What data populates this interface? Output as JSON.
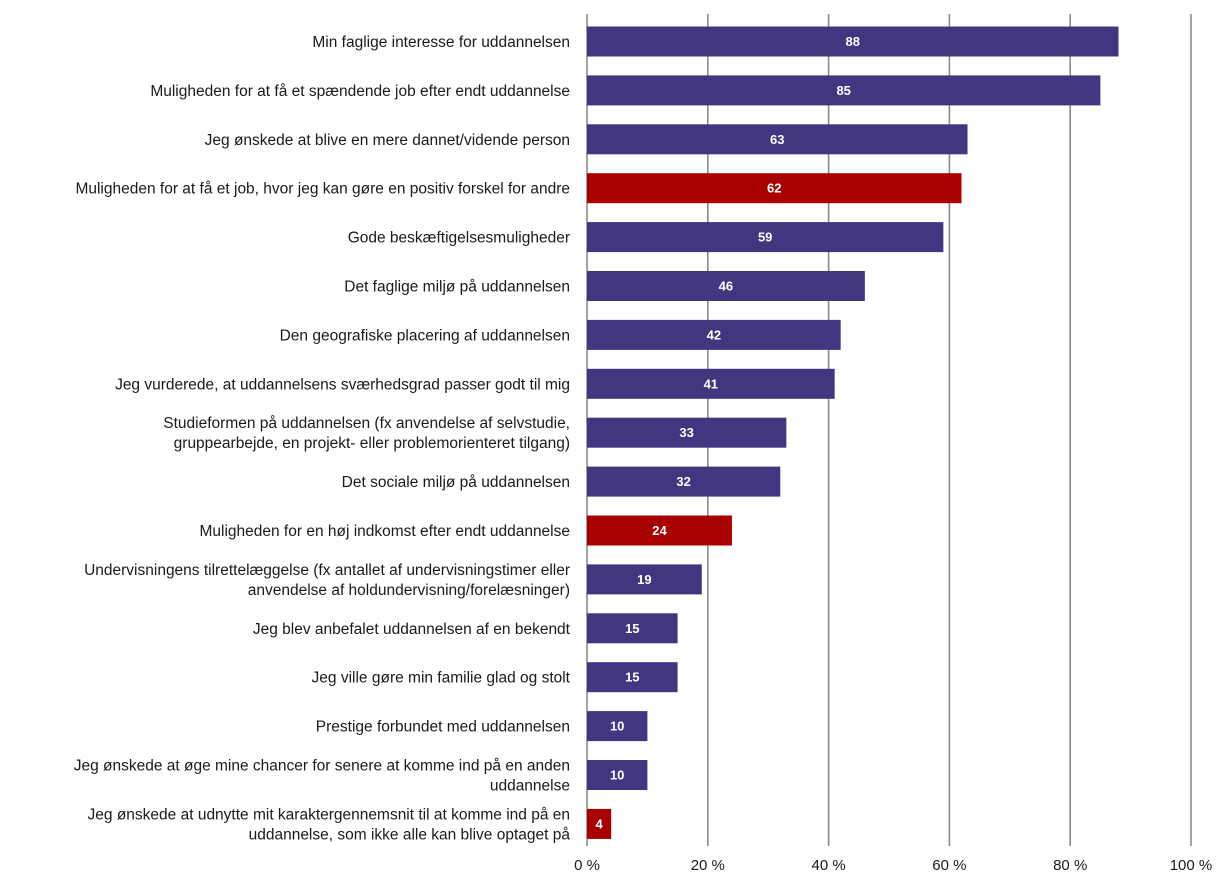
{
  "chart_data": {
    "type": "bar",
    "orientation": "horizontal",
    "categories": [
      [
        "Min faglige interesse for uddannelsen"
      ],
      [
        "Muligheden for at få et spændende job efter endt uddannelse"
      ],
      [
        "Jeg ønskede at blive en mere dannet/vidende person"
      ],
      [
        "Muligheden for at få et job, hvor jeg kan gøre en positiv forskel for andre"
      ],
      [
        "Gode beskæftigelsesmuligheder"
      ],
      [
        "Det faglige miljø på uddannelsen"
      ],
      [
        "Den geografiske placering af uddannelsen"
      ],
      [
        "Jeg  vurderede, at uddannelsens sværhedsgrad passer godt til mig"
      ],
      [
        "Studieformen på uddannelsen (fx anvendelse af selvstudie,",
        "gruppearbejde, en projekt- eller problemorienteret tilgang)"
      ],
      [
        "Det sociale miljø på uddannelsen"
      ],
      [
        "Muligheden for en høj indkomst efter endt uddannelse"
      ],
      [
        "Undervisningens tilrettelæggelse (fx antallet af undervisningstimer eller",
        "anvendelse af holdundervisning/forelæsninger)"
      ],
      [
        "Jeg blev anbefalet uddannelsen af en bekendt"
      ],
      [
        "Jeg ville gøre min familie glad og stolt"
      ],
      [
        "Prestige forbundet med uddannelsen"
      ],
      [
        "Jeg ønskede at øge mine chancer for senere at komme ind på en anden",
        "uddannelse"
      ],
      [
        "Jeg ønskede at udnytte mit karaktergennemsnit til at komme ind på en",
        "uddannelse, som ikke alle kan blive optaget på"
      ]
    ],
    "values": [
      88,
      85,
      63,
      62,
      59,
      46,
      42,
      41,
      33,
      32,
      24,
      19,
      15,
      15,
      10,
      10,
      4
    ],
    "data_labels": [
      "88",
      "85",
      "63",
      "62",
      "59",
      "46",
      "42",
      "41",
      "33",
      "32",
      "24",
      "19",
      "15",
      "15",
      "10",
      "10",
      "4"
    ],
    "highlighted": [
      false,
      false,
      false,
      true,
      false,
      false,
      false,
      false,
      false,
      false,
      true,
      false,
      false,
      false,
      false,
      false,
      true
    ],
    "colors": {
      "default": "#433580",
      "highlight": "#A80000",
      "grid": "#8a8a8a"
    },
    "xlim": [
      0,
      100
    ],
    "x_ticks": [
      "0 %",
      "20 %",
      "40 %",
      "60 %",
      "80 %",
      "100 %"
    ],
    "grid": true,
    "legend": "none"
  }
}
